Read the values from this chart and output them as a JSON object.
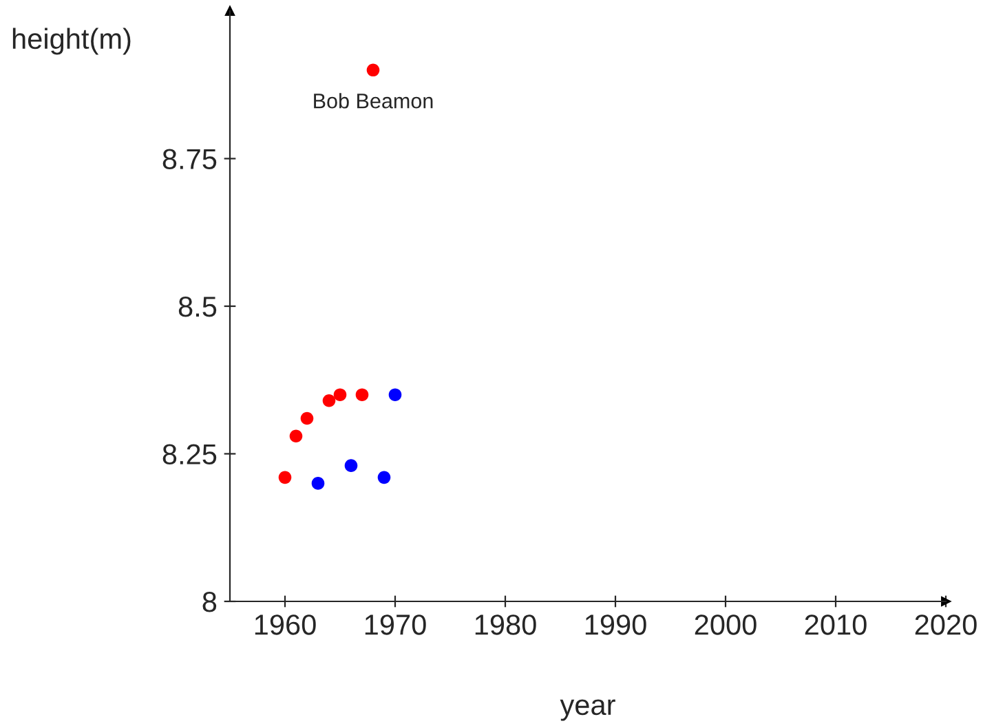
{
  "chart_data": {
    "type": "scatter",
    "xlabel": "year",
    "ylabel": "height(m)",
    "xlim": [
      1955,
      2020
    ],
    "xticks": [
      1960,
      1970,
      1980,
      1990,
      2000,
      2010,
      2020
    ],
    "ylim": [
      8,
      9
    ],
    "yticks": [
      8,
      8.25,
      8.5,
      8.75
    ],
    "grid": false,
    "legend": false,
    "marker": "circle",
    "series": [
      {
        "color": "#ff0000",
        "x": [
          1960,
          1961,
          1962,
          1964,
          1965,
          1967,
          1968
        ],
        "values": [
          8.21,
          8.28,
          8.31,
          8.34,
          8.35,
          8.35,
          8.9
        ]
      },
      {
        "color": "#0000ff",
        "x": [
          1963,
          1966,
          1969,
          1970
        ],
        "values": [
          8.2,
          8.23,
          8.21,
          8.35
        ]
      }
    ],
    "annotations": [
      {
        "text": "Bob Beamon",
        "x": 1968,
        "y": 8.9
      }
    ]
  }
}
